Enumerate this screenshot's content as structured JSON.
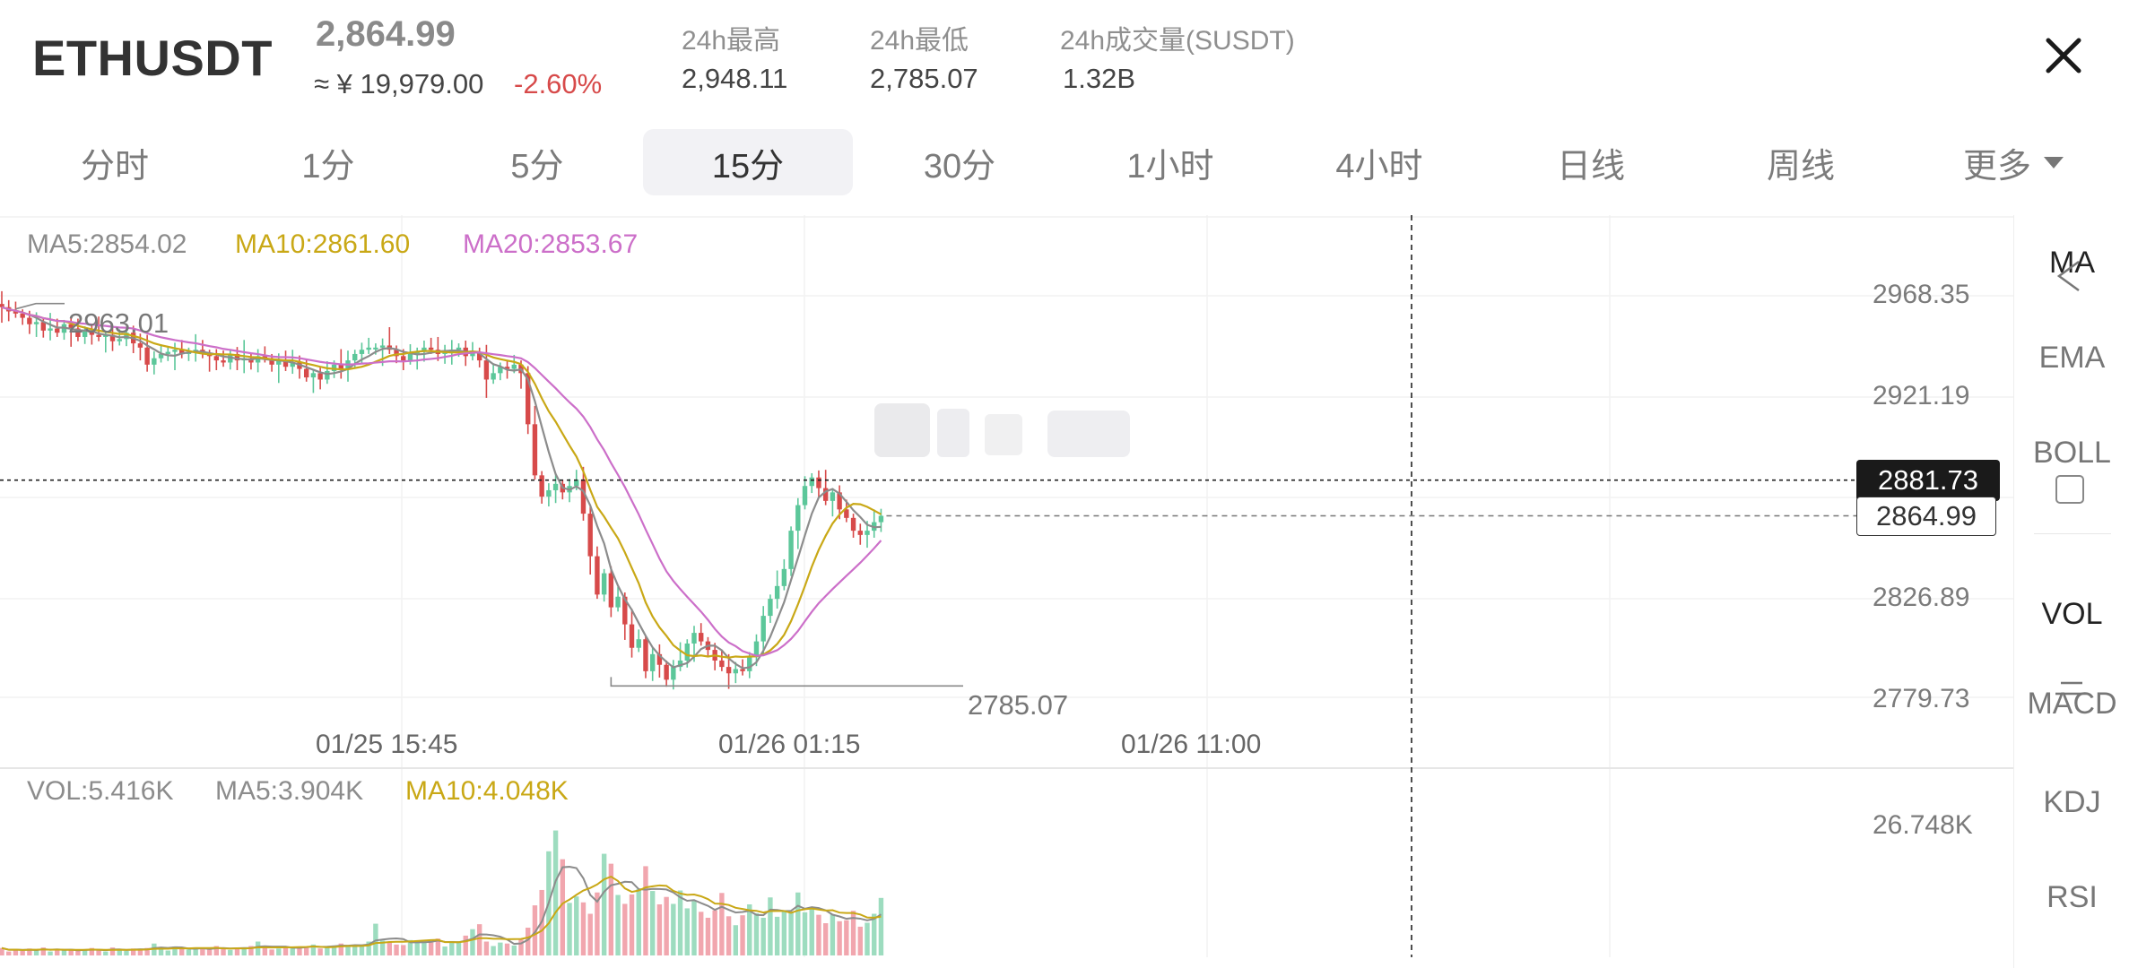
{
  "header": {
    "symbol": "ETHUSDT",
    "last_price": "2,864.99",
    "cny_price": "≈ ¥ 19,979.00",
    "change_pct": "-2.60%",
    "stats": [
      {
        "label": "24h最高",
        "value": "2,948.11"
      },
      {
        "label": "24h最低",
        "value": "2,785.07"
      },
      {
        "label": "24h成交量(SUSDT)",
        "value": "1.32B"
      }
    ]
  },
  "tabs": [
    {
      "label": "分时",
      "active": false
    },
    {
      "label": "1分",
      "active": false
    },
    {
      "label": "5分",
      "active": false
    },
    {
      "label": "15分",
      "active": true
    },
    {
      "label": "30分",
      "active": false
    },
    {
      "label": "1小时",
      "active": false
    },
    {
      "label": "4小时",
      "active": false
    },
    {
      "label": "日线",
      "active": false
    },
    {
      "label": "周线",
      "active": false
    },
    {
      "label": "更多",
      "active": false
    }
  ],
  "legend": {
    "ma5": "MA5:2854.02",
    "ma10": "MA10:2861.60",
    "ma20": "MA20:2853.67",
    "vol": "VOL:5.416K",
    "vol_ma5": "MA5:3.904K",
    "vol_ma10": "MA10:4.048K"
  },
  "indicators": {
    "main": [
      "MA",
      "EMA",
      "BOLL"
    ],
    "sub": [
      "VOL",
      "MACD",
      "KDJ",
      "RSI"
    ],
    "active_main": "MA",
    "active_sub": "VOL"
  },
  "colors": {
    "up": "#5cc79a",
    "down": "#d74a4a",
    "ma5": "#8c8c8c",
    "ma10": "#c9a816",
    "ma20": "#cc6fc9",
    "vol_up": "#9ddcbf",
    "vol_down": "#f1a6ae"
  },
  "chart_data": {
    "type": "candlestick",
    "symbol": "ETHUSDT",
    "interval": "15分",
    "y_tick_labels": [
      "2968.35",
      "2921.19",
      "2826.89",
      "2779.73"
    ],
    "y_range": [
      2779.73,
      2968.35
    ],
    "x_tick_labels": [
      "01/25 15:45",
      "01/26 01:15",
      "01/26 11:00"
    ],
    "high_annotation": "2963.01",
    "low_annotation": "2785.07",
    "crosshair_price": "2881.73",
    "last_price_label": "2864.99",
    "vol_axis_label": "26.748K",
    "vol_axis_max": 26.748,
    "close": [
      2963,
      2961,
      2960,
      2958,
      2955,
      2956,
      2952,
      2953,
      2951,
      2955,
      2953,
      2949,
      2952,
      2950,
      2949,
      2950,
      2947,
      2948,
      2951,
      2946,
      2944,
      2936,
      2939,
      2941,
      2942,
      2943,
      2941,
      2942,
      2943,
      2941,
      2940,
      2938,
      2937,
      2941,
      2938,
      2939,
      2937,
      2940,
      2939,
      2936,
      2938,
      2935,
      2937,
      2934,
      2930,
      2932,
      2929,
      2933,
      2936,
      2934,
      2938,
      2941,
      2943,
      2944,
      2944,
      2945,
      2943,
      2940,
      2938,
      2941,
      2942,
      2944,
      2943,
      2941,
      2942,
      2943,
      2944,
      2940,
      2942,
      2938,
      2929,
      2932,
      2935,
      2934,
      2936,
      2932,
      2908,
      2884,
      2874,
      2877,
      2880,
      2876,
      2879,
      2882,
      2866,
      2846,
      2828,
      2838,
      2822,
      2827,
      2814,
      2803,
      2807,
      2792,
      2800,
      2795,
      2788,
      2794,
      2797,
      2805,
      2810,
      2806,
      2802,
      2797,
      2794,
      2791,
      2793,
      2792,
      2799,
      2806,
      2818,
      2826,
      2832,
      2840,
      2858,
      2870,
      2879,
      2883,
      2878,
      2872,
      2876,
      2868,
      2864,
      2858,
      2856,
      2858,
      2862,
      2864.99
    ],
    "volume_k": [
      1.5,
      0.8,
      1.2,
      0.9,
      1.4,
      1.1,
      1.6,
      0.8,
      1.2,
      1.0,
      1.3,
      0.9,
      1.1,
      1.5,
      1.0,
      0.8,
      1.6,
      1.2,
      0.9,
      1.4,
      1.1,
      1.5,
      2.4,
      1.6,
      1.0,
      1.8,
      1.3,
      1.2,
      1.5,
      1.4,
      1.2,
      1.9,
      1.4,
      1.1,
      1.6,
      1.4,
      1.9,
      2.8,
      1.6,
      1.2,
      1.4,
      1.9,
      1.7,
      1.5,
      1.8,
      2.2,
      1.4,
      1.9,
      2.0,
      2.4,
      2.1,
      2.0,
      1.8,
      2.8,
      6.4,
      3.0,
      2.8,
      2.2,
      2.1,
      3.1,
      3.0,
      2.9,
      2.6,
      3.4,
      1.8,
      2.9,
      2.7,
      4.0,
      5.3,
      6.3,
      2.8,
      1.9,
      2.6,
      2.4,
      2.0,
      3.2,
      5.6,
      10.1,
      13.2,
      21.0,
      25.2,
      19.4,
      10.6,
      11.9,
      10.7,
      8.4,
      12.7,
      20.5,
      18.5,
      12.2,
      10.4,
      12.3,
      13.4,
      18.0,
      13.0,
      10.3,
      11.8,
      10.4,
      13.1,
      9.5,
      11.0,
      8.8,
      7.6,
      9.1,
      12.6,
      7.9,
      6.1,
      8.1,
      10.3,
      8.5,
      7.6,
      11.7,
      7.8,
      9.1,
      8.8,
      12.7,
      8.7,
      9.4,
      8.2,
      6.5,
      8.3,
      6.9,
      7.1,
      9.0,
      5.8,
      6.6,
      8.4,
      11.6
    ]
  }
}
